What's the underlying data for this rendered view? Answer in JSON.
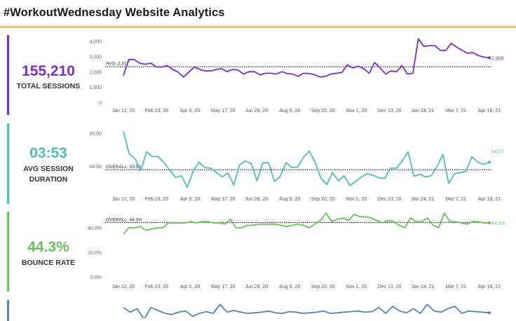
{
  "page": {
    "title": "#WorkoutWednesday Website Analytics"
  },
  "kpis": [
    {
      "value": "155,210",
      "label": "TOTAL SESSIONS",
      "color": "#7b2fbe"
    },
    {
      "value": "03:53",
      "label": "AVG SESSION DURATION",
      "color": "#4fbdbd"
    },
    {
      "value": "44.3%",
      "label": "BOUNCE RATE",
      "color": "#6cbf5e"
    },
    {
      "value": "",
      "label": "",
      "color": "#5a7fb5"
    }
  ],
  "accent_color": "#f2c94c",
  "chart_data": [
    {
      "type": "line",
      "color": "#7b2fbe",
      "x_ticks": [
        "Jan 12, 20",
        "Feb 23, 20",
        "Apr 5, 20",
        "May 17, 20",
        "Jun 28, 20",
        "Aug 9, 20",
        "Sep 20, 20",
        "Nov 1, 20",
        "Dec 13, 20",
        "Jan 24, 21",
        "Mar 7, 21",
        "Apr 18, 21"
      ],
      "y_ticks": [
        0,
        1000,
        2000,
        3000,
        4000
      ],
      "y_tick_labels": [
        "0",
        "1,000",
        "2,000",
        "3,000",
        "4,000"
      ],
      "ylim": [
        0,
        4300
      ],
      "reference_value": 2317,
      "reference_label": "AVG: 2,317",
      "last_label": "2,906",
      "values": [
        1750,
        2800,
        2780,
        2550,
        2480,
        2560,
        2320,
        2300,
        2400,
        2150,
        1980,
        1650,
        1980,
        2300,
        2150,
        2050,
        2050,
        2150,
        2200,
        2000,
        2150,
        2100,
        1850,
        2000,
        2000,
        1800,
        1900,
        1900,
        1850,
        2000,
        1880,
        1850,
        1700,
        1900,
        1880,
        1800,
        1650,
        1700,
        1850,
        1900,
        1950,
        2450,
        2250,
        2350,
        2200,
        1900,
        2600,
        2250,
        1850,
        2050,
        2000,
        2400,
        1850,
        1900,
        4150,
        3650,
        3700,
        3700,
        3400,
        3380,
        3850,
        3600,
        3400,
        3200,
        3250,
        3050,
        2950,
        2906
      ]
    },
    {
      "type": "line",
      "color": "#4fbdbd",
      "x_ticks": [
        "Jan 12, 20",
        "Feb 23, 20",
        "Apr 5, 20",
        "May 17, 20",
        "Jun 28, 20",
        "Aug 9, 20",
        "Sep 20, 20",
        "Nov 1, 20",
        "Dec 13, 20",
        "Jan 24, 21",
        "Mar 7, 21",
        "Apr 18, 21"
      ],
      "y_ticks": [
        240,
        300
      ],
      "y_tick_labels": [
        "04:00",
        "05:00"
      ],
      "ylim": [
        195,
        315
      ],
      "reference_value": 233,
      "reference_label": "OVERALL: 03:53",
      "last_label": "04:07",
      "values": [
        303,
        262,
        253,
        232,
        266,
        257,
        257,
        246,
        232,
        219,
        222,
        201,
        230,
        247,
        237,
        236,
        228,
        220,
        227,
        205,
        242,
        249,
        244,
        213,
        246,
        246,
        212,
        221,
        246,
        237,
        238,
        256,
        267,
        247,
        218,
        206,
        228,
        213,
        222,
        204,
        212,
        220,
        226,
        223,
        218,
        218,
        236,
        236,
        249,
        266,
        221,
        225,
        220,
        222,
        239,
        261,
        208,
        226,
        228,
        230,
        257,
        247,
        243,
        247
      ]
    },
    {
      "type": "line",
      "color": "#6cbf5e",
      "x_ticks": [
        "Jan 12, 20",
        "Feb 23, 20",
        "Apr 5, 20",
        "May 17, 20",
        "Jun 28, 20",
        "Aug 9, 20",
        "Sep 20, 20",
        "Nov 1, 20",
        "Dec 13, 20",
        "Jan 24, 21",
        "Mar 7, 21",
        "Apr 18, 21"
      ],
      "y_ticks": [
        0,
        20,
        40
      ],
      "y_tick_labels": [
        "0.0%",
        "20.0%",
        "40.0%"
      ],
      "ylim": [
        0,
        52
      ],
      "reference_value": 44.3,
      "reference_label": "OVERALL: 44.3%",
      "last_label": "44.3%",
      "values": [
        35,
        40,
        40,
        41,
        38,
        39,
        40,
        40,
        44,
        44,
        44,
        44,
        45,
        44,
        45,
        45,
        44,
        44,
        43,
        47,
        40,
        40,
        42,
        42,
        43,
        43,
        43,
        43,
        42,
        41,
        42,
        43,
        42,
        40,
        43,
        46,
        52,
        45,
        47,
        48,
        46,
        51,
        49,
        49,
        48,
        46,
        44,
        46,
        45,
        42,
        40,
        48,
        45,
        45,
        48,
        42,
        40,
        52,
        45,
        45,
        44,
        43,
        45,
        45,
        44,
        44
      ]
    },
    {
      "type": "line",
      "color": "#5a7fb5",
      "values": [
        50,
        42,
        48,
        30,
        50,
        45,
        40,
        38,
        42,
        44,
        35,
        40,
        43,
        40,
        55,
        42,
        45,
        42,
        40,
        41,
        42,
        44,
        41,
        40,
        43,
        42,
        40,
        41,
        42,
        44,
        40,
        41,
        42,
        43,
        44,
        42,
        43,
        50,
        40,
        52,
        44,
        41,
        48,
        40,
        55,
        44,
        42,
        48,
        52,
        40,
        44,
        43,
        42,
        41
      ]
    }
  ]
}
